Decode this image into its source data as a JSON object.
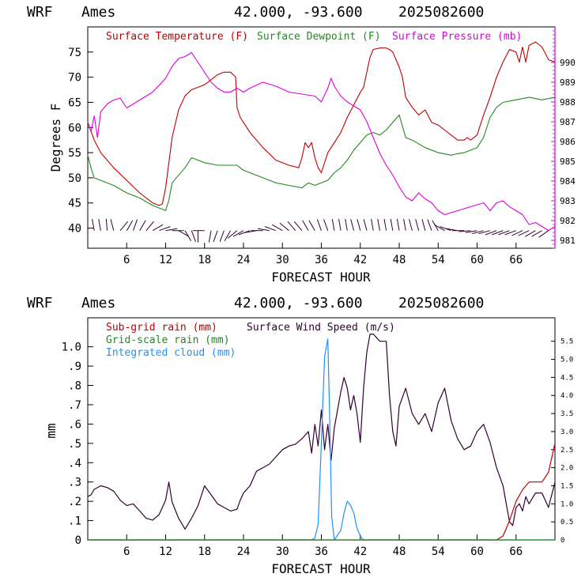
{
  "colors": {
    "temperature": "#c00000",
    "dewpoint": "#228822",
    "pressure": "#dd00dd",
    "subgrid_rain": "#c00000",
    "gridscale_rain": "#228822",
    "cloud": "#1e90ff",
    "wind": "#330033",
    "barb": "#330033"
  },
  "top_panel": {
    "header": {
      "model": "WRF",
      "station": "Ames",
      "coords": "42.000, -93.600",
      "date": "2025082600"
    },
    "xlabel": "FORECAST HOUR",
    "ylabel": "Degrees F",
    "legend": {
      "temperature": "Surface Temperature (F)",
      "dewpoint": "Surface Dewpoint (F)",
      "pressure": "Surface Pressure (mb)"
    }
  },
  "bottom_panel": {
    "header": {
      "model": "WRF",
      "station": "Ames",
      "coords": "42.000, -93.600",
      "date": "2025082600"
    },
    "xlabel": "FORECAST HOUR",
    "ylabel": "mm",
    "legend": {
      "subgrid_rain": "Sub-grid rain (mm)",
      "wind": "Surface Wind Speed (m/s)",
      "gridscale_rain": "Grid-scale rain (mm)",
      "cloud": "Integrated cloud (mm)"
    }
  },
  "chart_data": [
    {
      "type": "line",
      "x_range": [
        0,
        72
      ],
      "x_ticks": [
        6,
        12,
        18,
        24,
        30,
        36,
        42,
        48,
        54,
        60,
        66
      ],
      "ylim_left": [
        36,
        80
      ],
      "ylim_right": [
        980.6,
        991.8
      ],
      "y_ticks_left": [
        40,
        45,
        50,
        55,
        60,
        65,
        70,
        75
      ],
      "y_ticks_right": [
        981,
        982,
        983,
        984,
        985,
        986,
        987,
        988,
        989,
        990
      ],
      "grid": false,
      "series": [
        {
          "name": "Surface Temperature (F)",
          "axis": "left",
          "x": [
            0,
            1,
            2,
            4,
            6,
            8,
            10,
            11,
            11.5,
            12,
            12.5,
            13,
            14,
            15,
            16,
            17,
            18,
            19,
            20,
            21,
            22,
            22.8,
            23,
            23.5,
            24,
            25,
            27,
            29,
            31,
            32.5,
            33,
            33.5,
            34,
            34.5,
            35,
            35.5,
            36,
            37,
            38,
            39,
            40,
            41,
            42,
            42.5,
            43,
            43.5,
            44,
            45,
            46,
            46.5,
            47,
            48,
            48.5,
            49,
            50,
            51,
            52,
            53,
            54,
            55,
            56,
            57,
            58,
            58.5,
            59,
            60,
            61,
            62,
            63,
            64,
            65,
            66,
            66.5,
            67,
            67.5,
            68,
            69,
            70,
            71,
            72
          ],
          "values": [
            61,
            57.5,
            55,
            52,
            49.5,
            47,
            45,
            44.5,
            44.8,
            48,
            53,
            58,
            63.5,
            66.3,
            67.5,
            68,
            68.5,
            69.5,
            70.5,
            71,
            71,
            70,
            64,
            62,
            61,
            59,
            56,
            53.5,
            52.5,
            52,
            54,
            57,
            56,
            57,
            54,
            52,
            51,
            55,
            57,
            59,
            62,
            64.5,
            67,
            68,
            71,
            74,
            75.5,
            75.8,
            75.8,
            75.5,
            75,
            72,
            70,
            66,
            64,
            62.5,
            63.5,
            61,
            60.5,
            59.5,
            58.5,
            57.5,
            57.5,
            58,
            57.5,
            58.5,
            62.5,
            66,
            70,
            73,
            75.5,
            75,
            73,
            76,
            73,
            76.3,
            77,
            76,
            73.5,
            73
          ],
          "color_key": "temperature"
        },
        {
          "name": "Surface Dewpoint (F)",
          "axis": "left",
          "x": [
            0,
            0.5,
            1,
            2,
            4,
            6,
            8,
            10,
            11,
            12,
            12.5,
            13,
            14,
            15,
            16,
            17,
            18,
            20,
            22,
            23,
            24,
            25,
            27,
            29,
            31,
            33,
            34,
            35,
            36,
            37,
            38,
            39,
            40,
            41,
            42,
            43,
            44,
            45,
            46,
            47,
            48,
            49,
            50,
            52,
            54,
            56,
            57,
            58,
            59,
            60,
            61,
            62,
            63,
            64,
            66,
            68,
            70,
            72
          ],
          "values": [
            54.5,
            52,
            50,
            49.5,
            48.5,
            47,
            46,
            44.5,
            44,
            43.5,
            45.5,
            49,
            50.5,
            52,
            54,
            53.5,
            53,
            52.5,
            52.5,
            52.5,
            51.5,
            51,
            50,
            49,
            48.5,
            48,
            49,
            48.5,
            49,
            49.5,
            51,
            52,
            53.5,
            55.5,
            57,
            58.5,
            59,
            58.5,
            59.5,
            61,
            62.5,
            58,
            57.5,
            56,
            55,
            54.5,
            54.8,
            55,
            55.5,
            56,
            58,
            62,
            64,
            65,
            65.5,
            66,
            65.5,
            66
          ],
          "color_key": "dewpoint"
        },
        {
          "name": "Surface Pressure (mb)",
          "axis": "right",
          "x": [
            0,
            0.5,
            1,
            1.5,
            2,
            3,
            4,
            5,
            6,
            8,
            10,
            12,
            13,
            14,
            15,
            16,
            17,
            18,
            19,
            20,
            21,
            22,
            23,
            24,
            25,
            27,
            29,
            31,
            33,
            35,
            36,
            37,
            37.5,
            38,
            39,
            40,
            41,
            42,
            43,
            44,
            45,
            46,
            47,
            48,
            49,
            50,
            51,
            52,
            53,
            54,
            55,
            56,
            58,
            60,
            61,
            62,
            63,
            64,
            65,
            66,
            67,
            68,
            69,
            70,
            71,
            72
          ],
          "values": [
            987,
            986.5,
            987.3,
            986.2,
            987.5,
            987.9,
            988.1,
            988.2,
            987.7,
            988.1,
            988.5,
            989.2,
            989.8,
            990.2,
            990.3,
            990.5,
            990,
            989.5,
            989,
            988.7,
            988.5,
            988.5,
            988.7,
            988.5,
            988.7,
            989,
            988.8,
            988.5,
            988.4,
            988.3,
            988.0,
            988.7,
            989.2,
            988.8,
            988.3,
            988.0,
            987.8,
            987.6,
            987.0,
            986.2,
            985.4,
            984.8,
            984.3,
            983.7,
            983.2,
            983.0,
            983.4,
            983.1,
            982.9,
            982.5,
            982.3,
            982.4,
            982.6,
            982.8,
            982.9,
            982.5,
            982.9,
            983.0,
            982.7,
            982.5,
            982.3,
            981.8,
            981.9,
            981.7,
            981.5,
            981.7
          ],
          "color_key": "pressure"
        }
      ],
      "wind_barbs": {
        "x": [
          1,
          2,
          3,
          4,
          5,
          6,
          7,
          8,
          9,
          10,
          11,
          12,
          13,
          14,
          15,
          16,
          17,
          18,
          19,
          20,
          21,
          22,
          23,
          24,
          25,
          26,
          27,
          28,
          29,
          30,
          31,
          32,
          33,
          34,
          35,
          36,
          37,
          38,
          39,
          40,
          41,
          42,
          43,
          44,
          45,
          46,
          47,
          48,
          49,
          50,
          51,
          52,
          53,
          54,
          55,
          56,
          57,
          58,
          59,
          60,
          61,
          62,
          63,
          64,
          65,
          66,
          67,
          68,
          69,
          70,
          71
        ],
        "direction_deg": [
          350,
          350,
          355,
          345,
          40,
          30,
          20,
          30,
          40,
          60,
          70,
          80,
          90,
          120,
          150,
          160,
          180,
          270,
          190,
          200,
          200,
          210,
          230,
          240,
          250,
          260,
          270,
          280,
          290,
          300,
          310,
          320,
          320,
          330,
          330,
          340,
          340,
          350,
          350,
          350,
          345,
          345,
          345,
          350,
          350,
          350,
          350,
          350,
          350,
          345,
          345,
          345,
          340,
          330,
          300,
          290,
          280,
          270,
          265,
          260,
          255,
          255,
          250,
          250,
          250,
          250,
          245,
          245,
          240,
          240,
          235
        ]
      }
    },
    {
      "type": "line",
      "x_range": [
        0,
        72
      ],
      "x_ticks": [
        6,
        12,
        18,
        24,
        30,
        36,
        42,
        48,
        54,
        60,
        66
      ],
      "ylim_left": [
        0,
        1.15
      ],
      "ylim_right": [
        0,
        6.15
      ],
      "y_ticks_left": [
        {
          "v": 0,
          "label": "0"
        },
        {
          "v": 0.1,
          "label": ".1"
        },
        {
          "v": 0.2,
          "label": ".2"
        },
        {
          "v": 0.3,
          "label": ".3"
        },
        {
          "v": 0.4,
          "label": ".4"
        },
        {
          "v": 0.5,
          "label": ".5"
        },
        {
          "v": 0.6,
          "label": ".6"
        },
        {
          "v": 0.7,
          "label": ".7"
        },
        {
          "v": 0.8,
          "label": ".8"
        },
        {
          "v": 0.9,
          "label": ".9"
        },
        {
          "v": 1.0,
          "label": "1.0"
        }
      ],
      "y_ticks_right": [
        {
          "v": 0,
          "label": "0"
        },
        {
          "v": 0.5,
          "label": "0.5"
        },
        {
          "v": 1.0,
          "label": "1.0"
        },
        {
          "v": 1.5,
          "label": "1.5"
        },
        {
          "v": 2.0,
          "label": "2.0"
        },
        {
          "v": 2.5,
          "label": "2.5"
        },
        {
          "v": 3.0,
          "label": "3.0"
        },
        {
          "v": 3.5,
          "label": "3.5"
        },
        {
          "v": 4.0,
          "label": "4.0"
        },
        {
          "v": 4.5,
          "label": "4.5"
        },
        {
          "v": 5.0,
          "label": "5.0"
        },
        {
          "v": 5.5,
          "label": "5.5"
        }
      ],
      "grid": false,
      "series": [
        {
          "name": "Surface Wind Speed (m/s)",
          "axis": "right",
          "x": [
            0,
            0.5,
            1,
            2,
            3,
            4,
            5,
            6,
            7,
            8,
            9,
            10,
            11,
            12,
            12.5,
            13,
            14,
            15,
            16,
            17,
            18,
            19,
            20,
            21,
            22,
            23,
            23.5,
            24,
            25,
            26,
            27,
            28,
            29,
            30,
            31,
            32,
            33,
            34,
            34.5,
            35,
            35.5,
            36,
            36.5,
            37,
            37.5,
            38,
            38.5,
            39,
            39.5,
            40,
            40.5,
            41,
            41.5,
            42,
            42.5,
            43,
            43.5,
            44,
            45,
            46,
            46.5,
            47,
            47.5,
            48,
            49,
            50,
            51,
            52,
            53,
            54,
            55,
            56,
            57,
            58,
            59,
            60,
            61,
            62,
            63,
            64,
            64.5,
            65,
            65.5,
            66,
            66.5,
            67,
            67.5,
            68,
            69,
            70,
            71,
            72
          ],
          "values": [
            1.2,
            1.25,
            1.4,
            1.5,
            1.45,
            1.35,
            1.1,
            0.95,
            1.0,
            0.8,
            0.6,
            0.55,
            0.7,
            1.1,
            1.6,
            1.05,
            0.6,
            0.3,
            0.6,
            0.95,
            1.5,
            1.25,
            1.0,
            0.9,
            0.8,
            0.85,
            1.1,
            1.3,
            1.5,
            1.9,
            2.0,
            2.1,
            2.3,
            2.5,
            2.6,
            2.65,
            2.8,
            3.0,
            2.4,
            3.2,
            2.6,
            3.6,
            2.5,
            3.2,
            2.2,
            3.1,
            3.6,
            4.1,
            4.5,
            4.2,
            3.6,
            4.0,
            3.5,
            2.7,
            4.2,
            5.2,
            5.7,
            5.7,
            5.5,
            5.5,
            4.0,
            3.0,
            2.6,
            3.7,
            4.2,
            3.5,
            3.2,
            3.5,
            3.0,
            3.8,
            4.2,
            3.3,
            2.8,
            2.5,
            2.6,
            3.0,
            3.2,
            2.7,
            2.0,
            1.5,
            1.0,
            0.5,
            0.4,
            0.9,
            1.0,
            0.8,
            1.2,
            1.0,
            1.3,
            1.3,
            0.9,
            1.6
          ],
          "color_key": "wind"
        },
        {
          "name": "Integrated cloud (mm)",
          "axis": "left",
          "x": [
            0,
            34.5,
            35,
            35.5,
            36,
            36.5,
            37,
            37.3,
            37.6,
            38,
            39,
            39.5,
            40,
            40.5,
            41,
            41.5,
            42,
            42.5,
            43,
            72
          ],
          "values": [
            0,
            0,
            0.01,
            0.08,
            0.5,
            0.95,
            1.04,
            0.6,
            0.12,
            0.0,
            0.05,
            0.14,
            0.2,
            0.18,
            0.14,
            0.06,
            0.02,
            0.0,
            0.0,
            0.0
          ],
          "color_key": "cloud"
        },
        {
          "name": "Sub-grid rain (mm)",
          "axis": "left",
          "x": [
            0,
            63,
            64,
            65,
            66,
            67,
            68,
            69,
            70,
            71,
            72
          ],
          "values": [
            0,
            0,
            0.02,
            0.1,
            0.2,
            0.26,
            0.3,
            0.3,
            0.3,
            0.35,
            0.5
          ],
          "color_key": "subgrid_rain"
        },
        {
          "name": "Grid-scale rain (mm)",
          "axis": "left",
          "x": [
            0,
            72
          ],
          "values": [
            0,
            0
          ],
          "color_key": "gridscale_rain"
        }
      ]
    }
  ]
}
